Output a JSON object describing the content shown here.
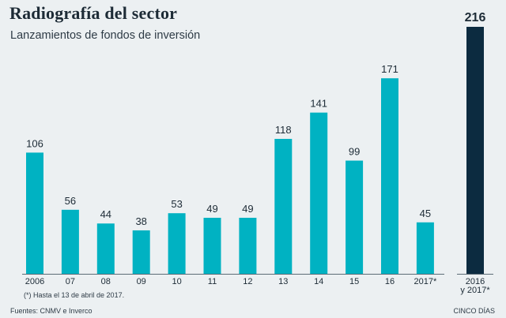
{
  "header": {
    "title": "Radiografía del sector",
    "subtitle": "Lanzamientos de fondos de inversión"
  },
  "footer": {
    "note": "(*) Hasta el 13 de abril de 2017.",
    "source": "Fuentes: CNMV e Inverco",
    "credit": "CINCO DÍAS"
  },
  "colors": {
    "bar": "#00b2c2",
    "total_bar": "#0c2b40",
    "axis": "#5c6c76"
  },
  "chart_data": {
    "type": "bar",
    "title": "Radiografía del sector",
    "subtitle": "Lanzamientos de fondos de inversión",
    "xlabel": "",
    "ylabel": "",
    "grid": false,
    "ylim": [
      0,
      216
    ],
    "categories": [
      "2006",
      "07",
      "08",
      "09",
      "10",
      "11",
      "12",
      "13",
      "14",
      "15",
      "16",
      "2017*"
    ],
    "values": [
      106,
      56,
      44,
      38,
      53,
      49,
      49,
      118,
      141,
      99,
      171,
      45
    ],
    "total": {
      "category_lines": [
        "2016",
        "y 2017*"
      ],
      "value": 216
    }
  }
}
